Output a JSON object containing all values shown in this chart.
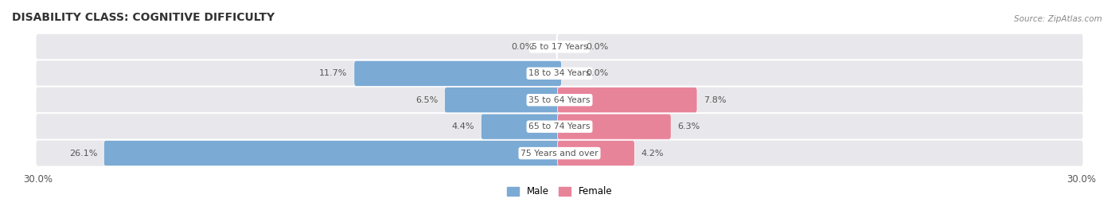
{
  "title": "DISABILITY CLASS: COGNITIVE DIFFICULTY",
  "source": "Source: ZipAtlas.com",
  "categories": [
    "5 to 17 Years",
    "18 to 34 Years",
    "35 to 64 Years",
    "65 to 74 Years",
    "75 Years and over"
  ],
  "male_values": [
    0.0,
    11.7,
    6.5,
    4.4,
    26.1
  ],
  "female_values": [
    0.0,
    0.0,
    7.8,
    6.3,
    4.2
  ],
  "max_val": 30.0,
  "male_color": "#7BAAD4",
  "female_color": "#E8849A",
  "bg_color": "#E8E8EC",
  "text_color": "#555555",
  "title_color": "#333333",
  "source_color": "#888888",
  "white": "#FFFFFF"
}
